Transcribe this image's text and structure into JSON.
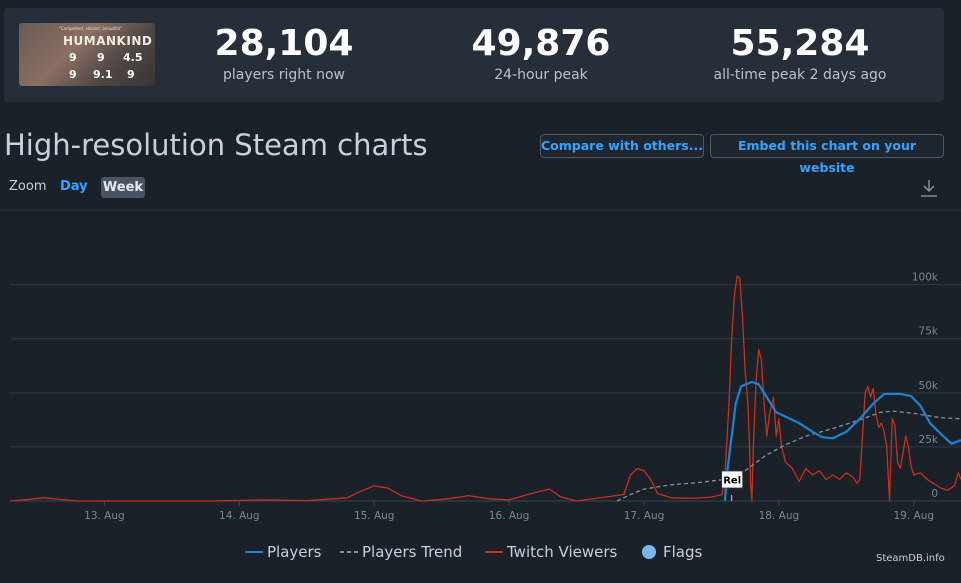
{
  "header": {
    "capsule": {
      "tagline": "\"Competent, vibrant, beautiful\"",
      "logo_text": "HUMANKIND",
      "scores": [
        "9",
        "9",
        "4.5",
        "9",
        "9.1",
        "9"
      ]
    },
    "stats": [
      {
        "value": "28,104",
        "label": "players right now"
      },
      {
        "value": "49,876",
        "label": "24-hour peak"
      },
      {
        "value": "55,284",
        "label": "all-time peak 2 days ago"
      }
    ]
  },
  "page_title": "High-resolution Steam charts",
  "buttons": {
    "compare": "Compare with others...",
    "embed": "Embed this chart on your website"
  },
  "zoom": {
    "label": "Zoom",
    "day": "Day",
    "week": "Week"
  },
  "download_icon": "download-icon",
  "chart_data": {
    "type": "line",
    "x_tick_labels": [
      "13. Aug",
      "14. Aug",
      "15. Aug",
      "16. Aug",
      "17. Aug",
      "18. Aug",
      "19. Aug"
    ],
    "y_tick_labels": [
      "0",
      "25k",
      "50k",
      "75k",
      "100k"
    ],
    "ylim": [
      0,
      110000
    ],
    "xlim": [
      12.3,
      19.35
    ],
    "flag": {
      "label": "Rel",
      "x": 17.65
    },
    "series": [
      {
        "name": "Players",
        "color": "#1a84d3",
        "style": "solid",
        "points": [
          [
            17.6,
            0
          ],
          [
            17.62,
            15000
          ],
          [
            17.65,
            30000
          ],
          [
            17.68,
            45000
          ],
          [
            17.72,
            53000
          ],
          [
            17.8,
            55000
          ],
          [
            17.85,
            54000
          ],
          [
            17.92,
            47000
          ],
          [
            17.98,
            41000
          ],
          [
            18.05,
            39000
          ],
          [
            18.15,
            36000
          ],
          [
            18.25,
            32000
          ],
          [
            18.32,
            29500
          ],
          [
            18.4,
            29000
          ],
          [
            18.5,
            32000
          ],
          [
            18.6,
            38000
          ],
          [
            18.7,
            45000
          ],
          [
            18.78,
            49500
          ],
          [
            18.9,
            49500
          ],
          [
            18.98,
            48500
          ],
          [
            19.05,
            44000
          ],
          [
            19.12,
            36000
          ],
          [
            19.2,
            31000
          ],
          [
            19.28,
            26500
          ],
          [
            19.35,
            28104
          ]
        ]
      },
      {
        "name": "Players Trend",
        "color": "#8a9099",
        "style": "dashed",
        "points": [
          [
            16.8,
            0
          ],
          [
            16.9,
            3000
          ],
          [
            17.0,
            5500
          ],
          [
            17.2,
            7500
          ],
          [
            17.4,
            8500
          ],
          [
            17.6,
            10000
          ],
          [
            17.75,
            14000
          ],
          [
            17.9,
            21000
          ],
          [
            18.05,
            26000
          ],
          [
            18.2,
            30000
          ],
          [
            18.4,
            33500
          ],
          [
            18.6,
            37500
          ],
          [
            18.75,
            41000
          ],
          [
            18.85,
            41500
          ],
          [
            19.0,
            40500
          ],
          [
            19.2,
            38500
          ],
          [
            19.35,
            38000
          ]
        ]
      },
      {
        "name": "Twitch Viewers",
        "color": "#c8301c",
        "style": "solid",
        "points": [
          [
            12.3,
            0
          ],
          [
            12.45,
            800
          ],
          [
            12.55,
            1500
          ],
          [
            12.65,
            900
          ],
          [
            12.8,
            0
          ],
          [
            13.5,
            0
          ],
          [
            13.8,
            0
          ],
          [
            14.2,
            500
          ],
          [
            14.5,
            200
          ],
          [
            14.8,
            1500
          ],
          [
            14.9,
            4500
          ],
          [
            15.0,
            7000
          ],
          [
            15.1,
            6000
          ],
          [
            15.2,
            2500
          ],
          [
            15.35,
            0
          ],
          [
            15.55,
            1000
          ],
          [
            15.7,
            2500
          ],
          [
            15.85,
            1000
          ],
          [
            16.0,
            500
          ],
          [
            16.2,
            4000
          ],
          [
            16.3,
            5500
          ],
          [
            16.38,
            2000
          ],
          [
            16.5,
            0
          ],
          [
            16.85,
            3000
          ],
          [
            16.9,
            12000
          ],
          [
            16.95,
            15000
          ],
          [
            17.0,
            14000
          ],
          [
            17.05,
            10000
          ],
          [
            17.1,
            3500
          ],
          [
            17.2,
            1500
          ],
          [
            17.35,
            1200
          ],
          [
            17.5,
            1800
          ],
          [
            17.58,
            3000
          ],
          [
            17.6,
            12000
          ],
          [
            17.63,
            45000
          ],
          [
            17.65,
            75000
          ],
          [
            17.67,
            95000
          ],
          [
            17.69,
            104000
          ],
          [
            17.71,
            103000
          ],
          [
            17.73,
            85000
          ],
          [
            17.75,
            60000
          ],
          [
            17.77,
            45000
          ],
          [
            17.78,
            30000
          ],
          [
            17.79,
            8000
          ],
          [
            17.8,
            0
          ],
          [
            17.81,
            25000
          ],
          [
            17.83,
            55000
          ],
          [
            17.85,
            70000
          ],
          [
            17.87,
            65000
          ],
          [
            17.89,
            45000
          ],
          [
            17.91,
            30000
          ],
          [
            17.93,
            40000
          ],
          [
            17.96,
            48000
          ],
          [
            17.98,
            30000
          ],
          [
            18.0,
            38000
          ],
          [
            18.02,
            25000
          ],
          [
            18.05,
            18000
          ],
          [
            18.1,
            15000
          ],
          [
            18.15,
            9000
          ],
          [
            18.2,
            15000
          ],
          [
            18.25,
            12000
          ],
          [
            18.3,
            14000
          ],
          [
            18.35,
            10000
          ],
          [
            18.4,
            12000
          ],
          [
            18.45,
            10000
          ],
          [
            18.5,
            13000
          ],
          [
            18.55,
            11000
          ],
          [
            18.58,
            8000
          ],
          [
            18.6,
            10000
          ],
          [
            18.62,
            30000
          ],
          [
            18.64,
            50000
          ],
          [
            18.66,
            53000
          ],
          [
            18.68,
            48000
          ],
          [
            18.7,
            52000
          ],
          [
            18.72,
            40000
          ],
          [
            18.74,
            34000
          ],
          [
            18.76,
            36000
          ],
          [
            18.78,
            32000
          ],
          [
            18.8,
            25000
          ],
          [
            18.82,
            0
          ],
          [
            18.84,
            38000
          ],
          [
            18.86,
            35000
          ],
          [
            18.88,
            18000
          ],
          [
            18.9,
            15000
          ],
          [
            18.92,
            22000
          ],
          [
            18.94,
            30000
          ],
          [
            18.96,
            25000
          ],
          [
            18.98,
            16000
          ],
          [
            19.0,
            12000
          ],
          [
            19.05,
            13000
          ],
          [
            19.1,
            10000
          ],
          [
            19.15,
            8000
          ],
          [
            19.2,
            6000
          ],
          [
            19.25,
            5000
          ],
          [
            19.3,
            7000
          ],
          [
            19.33,
            13000
          ],
          [
            19.35,
            10000
          ]
        ]
      }
    ],
    "legend": [
      {
        "name": "Players",
        "marker": "line",
        "color": "#1a84d3"
      },
      {
        "name": "Players Trend",
        "marker": "dash",
        "color": "#8a9099"
      },
      {
        "name": "Twitch Viewers",
        "marker": "line",
        "color": "#c8301c"
      },
      {
        "name": "Flags",
        "marker": "circle",
        "color": "#7cb5ec"
      }
    ],
    "credit": "SteamDB.info"
  }
}
